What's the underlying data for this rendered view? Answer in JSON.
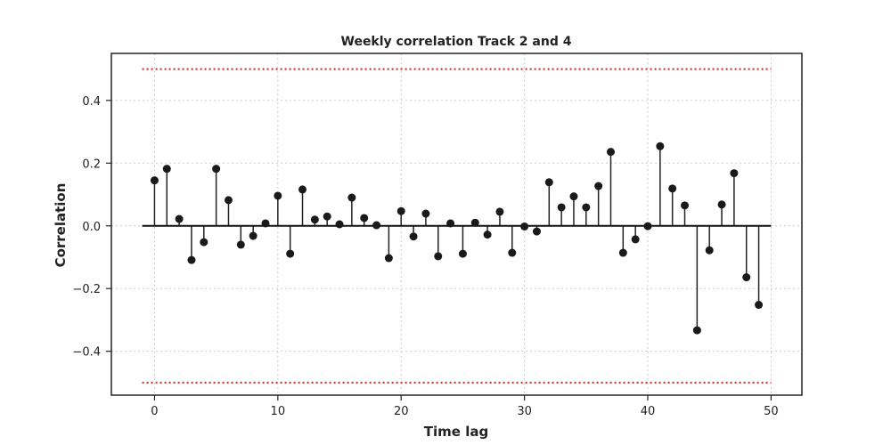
{
  "chart_data": {
    "type": "stem",
    "title": "Weekly correlation Track 2 and 4",
    "xlabel": "Time lag",
    "ylabel": "Correlation",
    "xlim": [
      -3.5,
      52.5
    ],
    "ylim": [
      -0.54,
      0.55
    ],
    "x_ticks": [
      0,
      10,
      20,
      30,
      40,
      50
    ],
    "y_ticks": [
      -0.4,
      -0.2,
      0.0,
      0.2,
      0.4
    ],
    "y_tick_labels": [
      "−0.4",
      "−0.2",
      "0.0",
      "0.2",
      "0.4"
    ],
    "grid": true,
    "confidence_bounds": [
      0.5,
      -0.5
    ],
    "baseline": {
      "y": 0,
      "x_start": -1,
      "x_end": 50
    },
    "colors": {
      "stem": "#222222",
      "marker": "#1a1a1a",
      "bounds": "#e0201b",
      "grid": "#cccccc"
    },
    "x": [
      0,
      1,
      2,
      3,
      4,
      5,
      6,
      7,
      8,
      9,
      10,
      11,
      12,
      13,
      14,
      15,
      16,
      17,
      18,
      19,
      20,
      21,
      22,
      23,
      24,
      25,
      26,
      27,
      28,
      29,
      30,
      31,
      32,
      33,
      34,
      35,
      36,
      37,
      38,
      39,
      40,
      41,
      42,
      43,
      44,
      45,
      46,
      47,
      48,
      49
    ],
    "values": [
      0.145,
      0.182,
      0.022,
      -0.109,
      -0.052,
      0.182,
      0.082,
      -0.06,
      -0.032,
      0.008,
      0.096,
      -0.089,
      0.116,
      0.02,
      0.03,
      0.005,
      0.09,
      0.025,
      0.002,
      -0.103,
      0.047,
      -0.034,
      0.039,
      -0.097,
      0.008,
      -0.089,
      0.01,
      -0.028,
      0.045,
      -0.086,
      -0.002,
      -0.018,
      0.139,
      0.059,
      0.094,
      0.059,
      0.127,
      0.236,
      -0.086,
      -0.043,
      -0.001,
      0.254,
      0.119,
      0.065,
      -0.333,
      -0.078,
      0.068,
      0.168,
      -0.164,
      -0.252
    ]
  }
}
